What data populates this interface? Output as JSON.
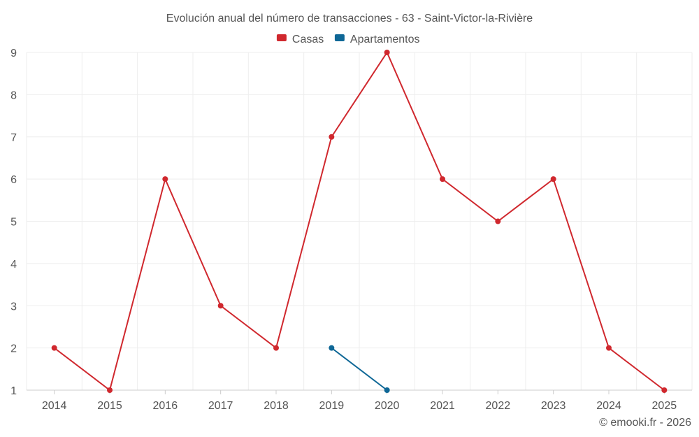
{
  "chart_data": {
    "type": "line",
    "title": "Evolución anual del número de transacciones - 63 - Saint-Victor-la-Rivière",
    "xlabel": "",
    "ylabel": "",
    "ylim": [
      1,
      9
    ],
    "yticks": [
      "1",
      "2",
      "3",
      "4",
      "5",
      "6",
      "7",
      "8",
      "9"
    ],
    "categories": [
      "2014",
      "2015",
      "2016",
      "2017",
      "2018",
      "2019",
      "2020",
      "2021",
      "2022",
      "2023",
      "2024",
      "2025"
    ],
    "series": [
      {
        "name": "Casas",
        "color": "#d0282e",
        "values": [
          2,
          1,
          6,
          3,
          2,
          7,
          9,
          6,
          5,
          6,
          2,
          1
        ]
      },
      {
        "name": "Apartamentos",
        "color": "#0e6796",
        "values": [
          null,
          null,
          null,
          null,
          null,
          2,
          1,
          null,
          null,
          null,
          null,
          null
        ]
      }
    ],
    "legend_position": "top-center",
    "grid": true
  },
  "credit": "© emooki.fr - 2026"
}
